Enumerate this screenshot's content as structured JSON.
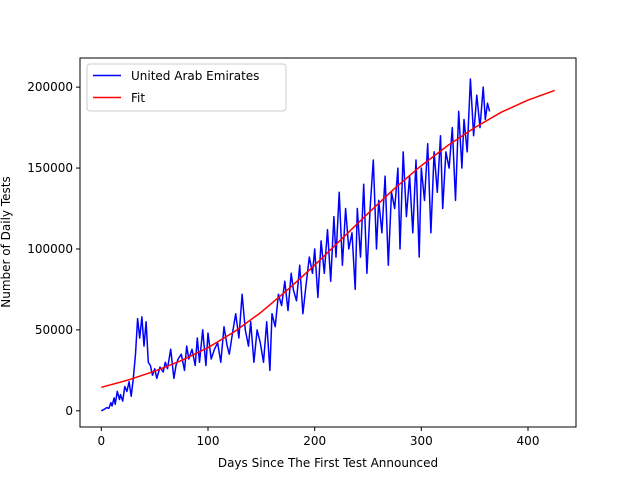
{
  "chart_data": {
    "type": "line",
    "title": "",
    "xlabel": "Days Since The First Test Announced",
    "ylabel": "Number of Daily Tests",
    "xlim": [
      -20,
      445
    ],
    "ylim": [
      -10000,
      218000
    ],
    "xticks": [
      0,
      100,
      200,
      300,
      400
    ],
    "yticks": [
      0,
      50000,
      100000,
      150000,
      200000
    ],
    "grid": false,
    "legend_position": "top-left",
    "series": [
      {
        "name": "United Arab Emirates",
        "color": "#0000ff",
        "x": [
          0,
          3,
          5,
          7,
          9,
          10,
          12,
          13,
          15,
          17,
          18,
          20,
          22,
          24,
          26,
          28,
          30,
          32,
          34,
          36,
          38,
          40,
          42,
          44,
          46,
          48,
          50,
          52,
          55,
          58,
          60,
          62,
          65,
          68,
          70,
          72,
          75,
          78,
          80,
          82,
          85,
          88,
          90,
          92,
          95,
          98,
          100,
          103,
          106,
          109,
          112,
          115,
          118,
          120,
          123,
          126,
          129,
          132,
          135,
          138,
          140,
          143,
          146,
          149,
          152,
          155,
          158,
          160,
          163,
          166,
          169,
          172,
          175,
          178,
          180,
          183,
          186,
          189,
          192,
          195,
          198,
          200,
          203,
          206,
          209,
          212,
          215,
          218,
          220,
          223,
          226,
          229,
          232,
          235,
          238,
          240,
          243,
          246,
          249,
          252,
          255,
          258,
          260,
          263,
          266,
          269,
          272,
          275,
          278,
          280,
          283,
          286,
          289,
          292,
          295,
          298,
          300,
          303,
          306,
          309,
          312,
          315,
          318,
          320,
          323,
          326,
          329,
          332,
          335,
          338,
          340,
          343,
          346,
          349,
          352,
          355,
          358,
          360,
          362,
          364
        ],
        "y": [
          0,
          1000,
          2000,
          1500,
          5000,
          3000,
          8000,
          4000,
          12000,
          7000,
          10000,
          6000,
          15000,
          12000,
          18000,
          9000,
          20000,
          35000,
          57000,
          45000,
          58000,
          40000,
          55000,
          30000,
          28000,
          22000,
          26000,
          20000,
          27000,
          24000,
          30000,
          26000,
          38000,
          20000,
          28000,
          32000,
          35000,
          25000,
          40000,
          32000,
          38000,
          28000,
          45000,
          30000,
          50000,
          28000,
          48000,
          32000,
          38000,
          42000,
          30000,
          52000,
          40000,
          35000,
          48000,
          60000,
          45000,
          72000,
          50000,
          40000,
          55000,
          30000,
          50000,
          42000,
          30000,
          55000,
          25000,
          60000,
          52000,
          72000,
          65000,
          80000,
          62000,
          85000,
          75000,
          68000,
          90000,
          60000,
          78000,
          95000,
          85000,
          100000,
          70000,
          105000,
          85000,
          112000,
          80000,
          120000,
          95000,
          135000,
          90000,
          125000,
          100000,
          110000,
          75000,
          125000,
          95000,
          140000,
          85000,
          125000,
          155000,
          100000,
          130000,
          110000,
          145000,
          90000,
          135000,
          125000,
          150000,
          100000,
          160000,
          120000,
          145000,
          110000,
          155000,
          95000,
          150000,
          130000,
          165000,
          110000,
          160000,
          135000,
          170000,
          125000,
          160000,
          150000,
          175000,
          130000,
          185000,
          150000,
          180000,
          160000,
          205000,
          170000,
          195000,
          175000,
          200000,
          180000,
          190000,
          185000
        ],
        "line_width": 1.5
      },
      {
        "name": "Fit",
        "color": "#ff0000",
        "line_width": 1.5,
        "x": [
          0,
          25,
          50,
          75,
          100,
          125,
          150,
          175,
          200,
          225,
          250,
          275,
          300,
          325,
          350,
          375,
          400,
          425
        ],
        "y": [
          14500,
          19000,
          24500,
          31000,
          39000,
          49000,
          61000,
          75000,
          90000,
          106000,
          122000,
          137500,
          151500,
          164000,
          175000,
          184500,
          192000,
          198000
        ]
      }
    ]
  }
}
